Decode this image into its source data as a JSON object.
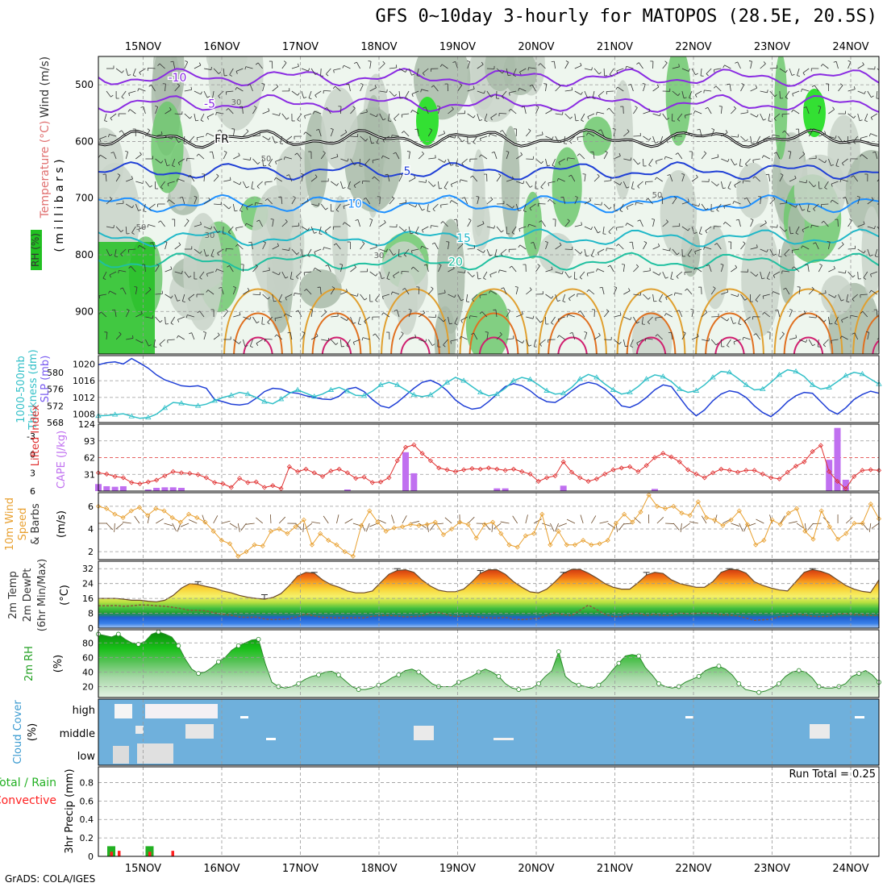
{
  "title": "GFS 0~10day 3-hourly for MATOPOS (28.5E, 20.5S)",
  "footer": "GrADS: COLA/IGES",
  "date_labels": [
    "15NOV",
    "16NOV",
    "17NOV",
    "18NOV",
    "19NOV",
    "20NOV",
    "21NOV",
    "22NOV",
    "23NOV",
    "24NOV"
  ],
  "colors": {
    "slp": "#1f3fd6",
    "thickness": "#33c0c8",
    "lifted": "#e03030",
    "cape": "#c070f0",
    "wind": "#e8a030",
    "barb": "#6b4a2a",
    "temp_line": "#6b4a2a",
    "rh_line": "#2b8a2b",
    "cloud_bg": "#6fb0dc",
    "precip_total": "#22b022",
    "precip_conv": "#ff2020"
  },
  "chart_data": [
    {
      "type": "contour",
      "panel": "upper-air",
      "ylabel_parts": [
        "Wind (m/s)",
        "Temperature (°C)",
        "RH (%)"
      ],
      "ylabel_unit": "( m i l l i b a r s )",
      "ylim": [
        450,
        975
      ],
      "yticks": [
        500,
        600,
        700,
        800,
        900
      ],
      "temperature_contours": [
        {
          "label": "-10",
          "level": 487,
          "color": "#8a2be2"
        },
        {
          "label": "-5",
          "level": 533,
          "color": "#8a2be2"
        },
        {
          "label": "FR",
          "level": 595,
          "color": "#000000"
        },
        {
          "label": "5",
          "level": 652,
          "color": "#1f3fd6"
        },
        {
          "label": "10",
          "level": 710,
          "color": "#1e90ff"
        },
        {
          "label": "15",
          "level": 770,
          "color": "#20b8c8"
        },
        {
          "label": "20",
          "level": 812,
          "color": "#20c0a0"
        }
      ],
      "rh_labels": [
        "30",
        "50",
        "50",
        "30",
        "30",
        "50"
      ]
    },
    {
      "type": "line",
      "panel": "slp-thickness",
      "ylabel_left": [
        "1000-500mb",
        "Thickness (dm)"
      ],
      "ylabel_right": "SLP (mb)",
      "left_ticks": [
        "568",
        "572",
        "576",
        "580"
      ],
      "right_ticks": [
        "1008",
        "1012",
        "1016",
        "1020"
      ],
      "left_range": [
        568,
        584
      ],
      "right_range": [
        1006,
        1022
      ],
      "series": [
        {
          "name": "SLP",
          "axis": "right",
          "values": [
            1019.8,
            1020.3,
            1020.5,
            1020.0,
            1021.3,
            1020.2,
            1019.0,
            1017.4,
            1016.2,
            1015.5,
            1014.8,
            1014.6,
            1014.8,
            1014.2,
            1011.5,
            1011.0,
            1010.4,
            1010.2,
            1010.5,
            1011.8,
            1013.4,
            1014.2,
            1014.0,
            1013.2,
            1013.0,
            1012.4,
            1012.0,
            1011.6,
            1011.5,
            1012.3,
            1014.0,
            1014.4,
            1013.4,
            1011.5,
            1010.0,
            1009.5,
            1010.8,
            1012.5,
            1014.2,
            1015.6,
            1016.1,
            1015.2,
            1013.6,
            1011.4,
            1010.0,
            1009.2,
            1009.5,
            1011.0,
            1012.8,
            1014.6,
            1015.3,
            1014.8,
            1013.6,
            1012.0,
            1011.0,
            1010.8,
            1012.0,
            1013.6,
            1015.0,
            1015.6,
            1015.2,
            1014.0,
            1012.2,
            1010.0,
            1009.6,
            1010.5,
            1012.0,
            1013.8,
            1015.0,
            1014.6,
            1012.0,
            1009.4,
            1007.6,
            1009.0,
            1011.2,
            1012.8,
            1013.6,
            1013.2,
            1012.0,
            1010.0,
            1008.4,
            1007.4,
            1009.0,
            1011.0,
            1012.4,
            1013.2,
            1013.0,
            1011.0,
            1009.0,
            1008.0,
            1009.5,
            1011.5,
            1012.7,
            1013.5,
            1013.0
          ]
        },
        {
          "name": "Thickness",
          "axis": "left",
          "values": [
            569.6,
            569.7,
            569.9,
            570.1,
            569.5,
            569.0,
            569.2,
            570.0,
            571.5,
            572.8,
            572.6,
            572.2,
            572.0,
            572.4,
            573.2,
            574.0,
            574.5,
            575.2,
            574.8,
            574.0,
            573.0,
            572.5,
            573.6,
            575.0,
            575.8,
            575.0,
            574.2,
            574.8,
            575.8,
            576.4,
            575.5,
            574.5,
            574.4,
            575.5,
            577.0,
            577.6,
            577.0,
            575.8,
            574.6,
            574.2,
            574.6,
            576.0,
            577.6,
            578.8,
            578.0,
            576.6,
            575.2,
            574.4,
            574.8,
            576.2,
            578.0,
            578.8,
            578.3,
            577.0,
            575.6,
            574.8,
            575.0,
            576.4,
            578.4,
            579.5,
            578.8,
            577.2,
            575.8,
            574.8,
            575.2,
            576.6,
            578.4,
            579.4,
            579.0,
            577.8,
            576.0,
            575.2,
            575.6,
            577.0,
            578.8,
            580.2,
            580.0,
            578.6,
            577.0,
            575.8,
            576.0,
            577.6,
            579.4,
            580.6,
            580.2,
            579.0,
            577.0,
            576.0,
            576.4,
            577.8,
            579.2,
            580.0,
            579.6,
            578.4,
            577.2
          ]
        }
      ]
    },
    {
      "type": "line+bar",
      "panel": "lifted-cape",
      "ylabel_left": "Lifted Index",
      "ylabel_right": "CAPE (J/kg)",
      "left_ticks": [
        "-3",
        "0",
        "3",
        "6"
      ],
      "right_ticks": [
        "31",
        "62",
        "93",
        "124"
      ],
      "lifted_range": [
        -5,
        6
      ],
      "cape_range": [
        0,
        124
      ],
      "lifted_index": [
        3.0,
        3.2,
        3.6,
        3.8,
        4.6,
        4.8,
        4.5,
        4.2,
        3.5,
        2.8,
        3.0,
        3.1,
        3.3,
        3.8,
        4.6,
        4.8,
        5.4,
        3.9,
        4.6,
        4.5,
        5.4,
        5.1,
        5.6,
        2.0,
        2.8,
        2.4,
        3.0,
        3.6,
        2.7,
        2.4,
        3.0,
        3.9,
        3.7,
        4.6,
        4.5,
        3.8,
        1.0,
        -1.2,
        -1.6,
        -0.2,
        1.0,
        2.2,
        2.5,
        2.8,
        2.5,
        2.3,
        2.4,
        2.2,
        2.4,
        2.6,
        2.4,
        2.8,
        3.2,
        4.4,
        3.8,
        3.5,
        1.2,
        2.9,
        3.8,
        4.4,
        4.0,
        3.2,
        2.5,
        2.2,
        2.0,
        2.8,
        1.8,
        0.5,
        -0.2,
        0.4,
        1.2,
        2.5,
        3.2,
        3.8,
        3.0,
        2.4,
        2.6,
        2.9,
        2.6,
        2.6,
        3.2,
        3.8,
        4.0,
        2.9,
        1.9,
        1.2,
        -0.5,
        -1.5,
        2.8,
        4.4,
        5.6,
        3.6,
        2.6,
        2.5,
        2.6
      ],
      "cape_bars": [
        {
          "i": 0,
          "v": 13
        },
        {
          "i": 1,
          "v": 9
        },
        {
          "i": 2,
          "v": 8
        },
        {
          "i": 3,
          "v": 9
        },
        {
          "i": 6,
          "v": 3
        },
        {
          "i": 7,
          "v": 6
        },
        {
          "i": 8,
          "v": 7
        },
        {
          "i": 9,
          "v": 7
        },
        {
          "i": 10,
          "v": 6
        },
        {
          "i": 30,
          "v": 3
        },
        {
          "i": 37,
          "v": 72
        },
        {
          "i": 38,
          "v": 33
        },
        {
          "i": 48,
          "v": 5
        },
        {
          "i": 49,
          "v": 5
        },
        {
          "i": 56,
          "v": 10
        },
        {
          "i": 67,
          "v": 4
        },
        {
          "i": 88,
          "v": 58
        },
        {
          "i": 89,
          "v": 117
        },
        {
          "i": 90,
          "v": 21
        }
      ]
    },
    {
      "type": "line",
      "panel": "wind10m",
      "ylabel": [
        "10m Wind",
        "Speed",
        "& Barbs"
      ],
      "ylabel_unit": "(m/s)",
      "ticks": [
        "2",
        "4",
        "6"
      ],
      "range": [
        1.3,
        7.2
      ],
      "values": [
        6.0,
        5.8,
        5.3,
        5.0,
        5.6,
        5.9,
        5.2,
        5.8,
        5.6,
        5.0,
        4.6,
        5.3,
        5.0,
        4.6,
        3.8,
        3.0,
        2.7,
        1.6,
        2.0,
        2.6,
        2.5,
        3.8,
        4.0,
        3.6,
        4.2,
        4.8,
        2.6,
        3.6,
        3.0,
        2.6,
        2.0,
        1.6,
        4.3,
        5.6,
        4.6,
        3.8,
        4.1,
        4.2,
        4.4,
        4.3,
        4.4,
        4.6,
        3.5,
        4.0,
        4.6,
        4.4,
        3.2,
        4.4,
        4.6,
        3.6,
        2.6,
        2.4,
        3.4,
        3.6,
        5.3,
        2.6,
        3.8,
        2.6,
        2.6,
        3.0,
        2.6,
        2.7,
        3.0,
        4.5,
        5.3,
        4.6,
        5.5,
        7.0,
        6.0,
        5.8,
        6.0,
        5.4,
        5.2,
        6.4,
        5.0,
        4.8,
        4.3,
        4.8,
        5.6,
        4.4,
        2.6,
        3.0,
        4.8,
        4.4,
        5.4,
        5.8,
        3.8,
        3.1,
        5.6,
        4.2,
        3.1,
        3.6,
        4.5,
        4.5,
        6.2,
        4.9
      ]
    },
    {
      "type": "area",
      "panel": "temperature",
      "ylabel": [
        "2m Temp",
        "2m DewPt",
        "(6hr Min/Max)"
      ],
      "ylabel_unit": "(°C)",
      "ticks": [
        "0",
        "8",
        "16",
        "24",
        "32"
      ],
      "range": [
        0,
        36
      ],
      "temp": [
        16,
        16,
        16,
        15.6,
        15,
        15,
        14.5,
        14.2,
        15,
        17.6,
        21.5,
        24,
        23.5,
        22.4,
        21.5,
        20,
        19,
        17.6,
        16.6,
        16,
        15.6,
        16.5,
        18.6,
        23,
        28,
        30,
        29.6,
        26,
        23.4,
        22,
        20,
        19,
        19,
        20,
        24.6,
        29,
        31,
        31.4,
        30,
        25.8,
        22.6,
        20.4,
        19.6,
        19.6,
        21,
        25,
        29.5,
        31.4,
        31.4,
        29,
        25,
        22,
        19.5,
        19,
        21,
        25,
        29.5,
        31.6,
        31.6,
        29.6,
        27,
        24,
        22,
        21,
        21,
        24.5,
        28.6,
        30,
        29.4,
        26,
        24,
        23,
        22,
        22,
        25,
        30,
        31.6,
        31.4,
        29.6,
        25,
        23,
        21.6,
        20.5,
        20,
        25,
        30,
        31.5,
        30.6,
        29,
        26,
        23,
        21,
        19.8,
        19.2,
        26
      ],
      "dewpt": [
        12,
        12,
        12.2,
        11.8,
        12,
        12.5,
        12.4,
        12,
        11.8,
        11.2,
        10.5,
        9.6,
        9.6,
        9.3,
        8.2,
        7.4,
        7,
        6,
        5.8,
        6,
        5,
        4.6,
        4.8,
        5.1,
        6.2,
        7.6,
        6.6,
        5.8,
        5.6,
        5.5,
        5.5,
        5.6,
        5.5,
        6.4,
        6.8,
        6.8,
        6.6,
        6,
        6.2,
        6.6,
        8.4,
        8.6,
        7.2,
        6.3,
        6.4,
        6.6,
        6,
        5.5,
        5.4,
        5.8,
        4.8,
        4.6,
        5,
        5.2,
        6.8,
        8.4,
        7.2,
        6.8,
        9.6,
        12.4,
        10,
        7.4,
        6.2,
        6.2,
        7.6,
        8.2,
        6.8,
        7.5,
        6.8,
        6.8,
        8.1,
        7.8,
        8,
        8.2,
        8,
        7.2,
        7.1,
        6.6,
        5.4,
        4.2,
        4.5,
        4.8,
        6.2,
        6.4,
        7.4,
        7.2,
        6.4,
        6.2,
        6.4,
        7.4,
        7.8,
        7.2,
        7.2,
        6.8,
        6.8
      ],
      "max_whiskers": [
        {
          "i": 12,
          "v": 25
        },
        {
          "i": 20,
          "v": 18
        },
        {
          "i": 26,
          "v": 30
        },
        {
          "i": 36,
          "v": 32
        },
        {
          "i": 46,
          "v": 31
        },
        {
          "i": 56,
          "v": 30
        },
        {
          "i": 66,
          "v": 30
        },
        {
          "i": 76,
          "v": 32
        },
        {
          "i": 86,
          "v": 32
        }
      ]
    },
    {
      "type": "area",
      "panel": "rh2m",
      "ylabel": "2m RH",
      "ylabel_unit": "(%)",
      "ticks": [
        "20",
        "40",
        "60",
        "80"
      ],
      "range": [
        5,
        98
      ],
      "values": [
        92,
        90,
        88,
        92,
        85,
        80,
        78,
        82,
        92,
        95,
        92,
        88,
        76,
        58,
        44,
        38,
        40,
        46,
        54,
        60,
        70,
        76,
        80,
        84,
        85,
        52,
        26,
        20,
        18,
        20,
        24,
        30,
        34,
        36,
        40,
        41,
        36,
        28,
        20,
        16,
        16,
        18,
        22,
        26,
        32,
        36,
        42,
        44,
        40,
        32,
        24,
        20,
        20,
        20,
        26,
        30,
        34,
        40,
        44,
        40,
        34,
        24,
        18,
        16,
        16,
        18,
        24,
        34,
        42,
        68,
        34,
        26,
        22,
        20,
        18,
        22,
        30,
        42,
        52,
        62,
        64,
        62,
        46,
        36,
        24,
        20,
        18,
        20,
        26,
        30,
        34,
        42,
        46,
        48,
        44,
        36,
        24,
        16,
        14,
        12,
        14,
        18,
        24,
        34,
        40,
        42,
        40,
        32,
        20,
        18,
        18,
        20,
        24,
        34,
        38,
        42,
        36,
        26
      ]
    },
    {
      "type": "heatmap",
      "panel": "cloud",
      "ylabel": [
        "Cloud Cover",
        "(%)"
      ],
      "rows": [
        "high",
        "middle",
        "low"
      ]
    },
    {
      "type": "bar",
      "panel": "precip",
      "ylabel": "3hr Precip (mm)",
      "legend": [
        "Total / Rain",
        "Convective"
      ],
      "run_total": "Run Total = 0.25",
      "ticks": [
        "0",
        "0.2",
        "0.4",
        "0.6",
        "0.8"
      ],
      "range": [
        0,
        0.97
      ],
      "total": [
        {
          "i": 0,
          "v": 0.11
        },
        {
          "i": 5,
          "v": 0.11
        },
        {
          "i": 1,
          "v": 0.0
        }
      ],
      "convective": [
        {
          "i": 0,
          "v": 0.05
        },
        {
          "i": 1,
          "v": 0.06
        },
        {
          "i": 5,
          "v": 0.05
        },
        {
          "i": 8,
          "v": 0.06
        }
      ]
    }
  ]
}
